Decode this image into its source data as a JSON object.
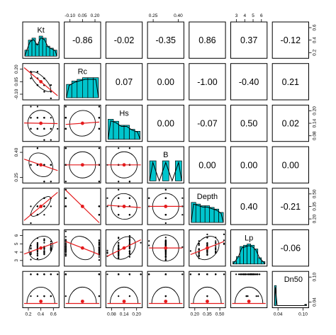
{
  "colors": {
    "histogram": "#00c5cd",
    "fit_line": "#e41a1c",
    "ellipse": "#000000",
    "center_point": "#e41a1c"
  },
  "chart_data": {
    "type": "scatter-matrix",
    "variables": [
      "Kt",
      "Rc",
      "Hs",
      "B",
      "Depth",
      "Lp",
      "Dn50"
    ],
    "correlations": [
      {
        "row": 0,
        "col": 1,
        "value": "-0.86"
      },
      {
        "row": 0,
        "col": 2,
        "value": "-0.02"
      },
      {
        "row": 0,
        "col": 3,
        "value": "-0.35"
      },
      {
        "row": 0,
        "col": 4,
        "value": "0.86"
      },
      {
        "row": 0,
        "col": 5,
        "value": "0.37"
      },
      {
        "row": 0,
        "col": 6,
        "value": "-0.12"
      },
      {
        "row": 1,
        "col": 2,
        "value": "0.07"
      },
      {
        "row": 1,
        "col": 3,
        "value": "0.00"
      },
      {
        "row": 1,
        "col": 4,
        "value": "-1.00"
      },
      {
        "row": 1,
        "col": 5,
        "value": "-0.40"
      },
      {
        "row": 1,
        "col": 6,
        "value": "0.21"
      },
      {
        "row": 2,
        "col": 3,
        "value": "0.00"
      },
      {
        "row": 2,
        "col": 4,
        "value": "-0.07"
      },
      {
        "row": 2,
        "col": 5,
        "value": "0.50"
      },
      {
        "row": 2,
        "col": 6,
        "value": "0.02"
      },
      {
        "row": 3,
        "col": 4,
        "value": "0.00"
      },
      {
        "row": 3,
        "col": 5,
        "value": "0.00"
      },
      {
        "row": 3,
        "col": 6,
        "value": "0.00"
      },
      {
        "row": 4,
        "col": 5,
        "value": "0.40"
      },
      {
        "row": 4,
        "col": 6,
        "value": "-0.21"
      },
      {
        "row": 5,
        "col": 6,
        "value": "-0.06"
      }
    ],
    "axes": {
      "top": [
        {
          "col": 1,
          "ticks": [
            "-0.10",
            "0.05",
            "0.20"
          ]
        },
        {
          "col": 3,
          "ticks": [
            "0.25",
            "0.40"
          ]
        },
        {
          "col": 5,
          "ticks": [
            "3",
            "4",
            "5",
            "6"
          ]
        }
      ],
      "bottom": [
        {
          "col": 0,
          "ticks": [
            "0.2",
            "0.4",
            "0.6"
          ]
        },
        {
          "col": 2,
          "ticks": [
            "0.08",
            "0.14",
            "0.20"
          ]
        },
        {
          "col": 4,
          "ticks": [
            "0.20",
            "0.35",
            "0.50"
          ]
        },
        {
          "col": 6,
          "ticks": [
            "0.04",
            "0.10"
          ]
        }
      ],
      "left": [
        {
          "row": 1,
          "ticks": [
            "-0.10",
            "0.05",
            "0.20"
          ]
        },
        {
          "row": 3,
          "ticks": [
            "0.25",
            "0.40"
          ]
        },
        {
          "row": 5,
          "ticks": [
            "3",
            "4",
            "5",
            "6"
          ]
        }
      ],
      "right": [
        {
          "row": 0,
          "ticks": [
            "0.2",
            "0.4",
            "0.6"
          ]
        },
        {
          "row": 2,
          "ticks": [
            "0.08",
            "0.14",
            "0.20"
          ]
        },
        {
          "row": 4,
          "ticks": [
            "0.20",
            "0.35",
            "0.50"
          ]
        },
        {
          "row": 6,
          "ticks": [
            "0.04",
            "0.10"
          ]
        }
      ]
    },
    "histograms": [
      {
        "var": "Kt",
        "counts": [
          3,
          8,
          9,
          6,
          10,
          9,
          5,
          4,
          3
        ]
      },
      {
        "var": "Rc",
        "counts": [
          8,
          10,
          11,
          12,
          12,
          12
        ]
      },
      {
        "var": "Hs",
        "counts": [
          10,
          9,
          7,
          7,
          5,
          4
        ]
      },
      {
        "var": "B",
        "counts": [
          10,
          0,
          10,
          0,
          10
        ]
      },
      {
        "var": "Depth",
        "counts": [
          12,
          11,
          10,
          10,
          9,
          8,
          6
        ]
      },
      {
        "var": "Lp",
        "counts": [
          2,
          6,
          14,
          15,
          16,
          15,
          12,
          5,
          2
        ]
      },
      {
        "var": "Dn50",
        "counts": [
          16,
          0,
          0,
          0,
          0,
          0,
          0,
          0,
          0,
          0,
          0,
          0,
          0,
          0,
          0,
          0,
          0,
          1
        ]
      }
    ]
  }
}
